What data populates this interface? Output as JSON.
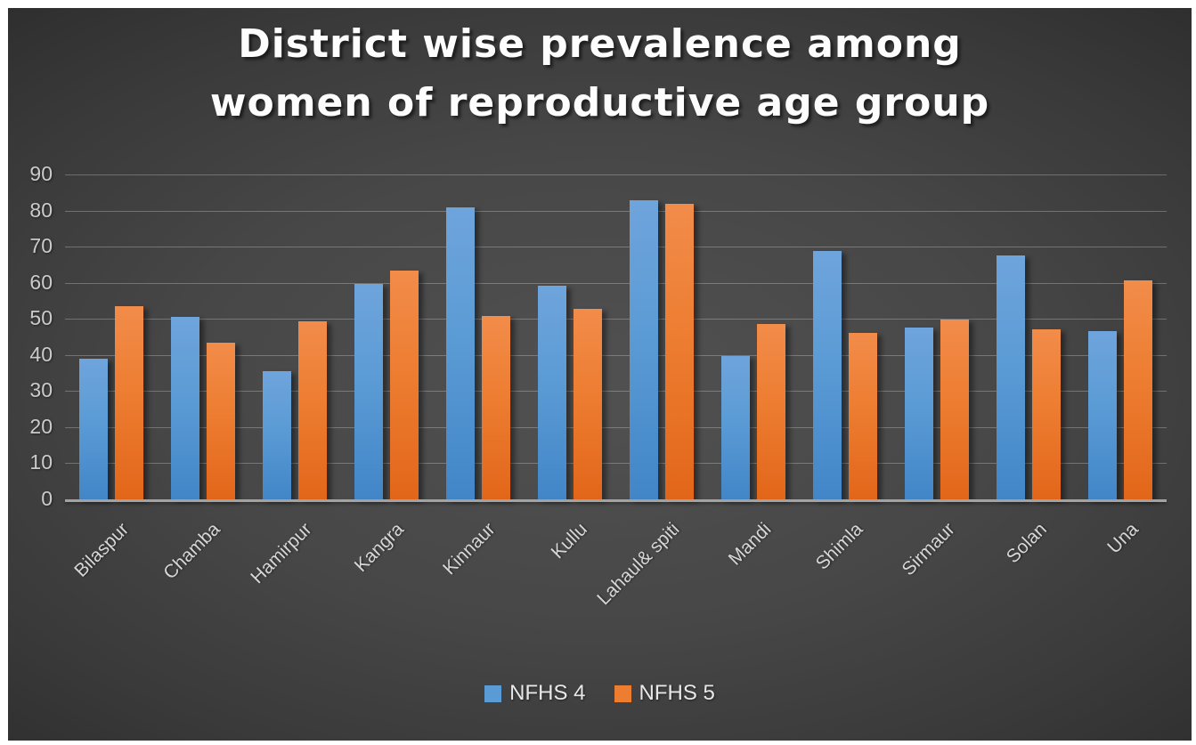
{
  "chart_data": {
    "type": "bar",
    "title": "District wise prevalence among women of reproductive age group",
    "title_lines": [
      "District wise prevalence among",
      "women of reproductive age group"
    ],
    "categories": [
      "Bilaspur",
      "Chamba",
      "Hamirpur",
      "Kangra",
      "Kinnaur",
      "Kullu",
      "Lahaul& spiti",
      "Mandi",
      "Shimla",
      "Sirmaur",
      "Solan",
      "Una"
    ],
    "series": [
      {
        "name": "NFHS 4",
        "color": "#5B9BD5",
        "values": [
          39.0,
          50.6,
          35.6,
          59.6,
          80.8,
          59.1,
          82.8,
          39.7,
          68.8,
          47.5,
          67.6,
          46.5
        ]
      },
      {
        "name": "NFHS 5",
        "color": "#ED7D31",
        "values": [
          53.4,
          43.4,
          49.2,
          63.3,
          50.8,
          52.8,
          81.9,
          48.6,
          46.0,
          49.8,
          47.0,
          60.7
        ]
      }
    ],
    "xlabel": "",
    "ylabel": "",
    "ylim": [
      0,
      90
    ],
    "ytick_interval": 10,
    "yticks": [
      0,
      10,
      20,
      30,
      40,
      50,
      60,
      70,
      80,
      90
    ],
    "grid": "horizontal",
    "legend_position": "bottom",
    "x_label_rotation_deg": 45
  },
  "colors": {
    "slide_background_center": "#4f4f4f",
    "slide_background_edge": "#2d2d2d",
    "title_text": "#fdfdfd",
    "axis_line": "#a3a3a3",
    "gridline": "#777777",
    "tick_label_text": "#cbcbcb",
    "category_label_text": "#d6d6d6",
    "legend_text": "#e8e8e8",
    "series_nfhs4": "#5B9BD5",
    "series_nfhs5": "#ED7D31"
  }
}
